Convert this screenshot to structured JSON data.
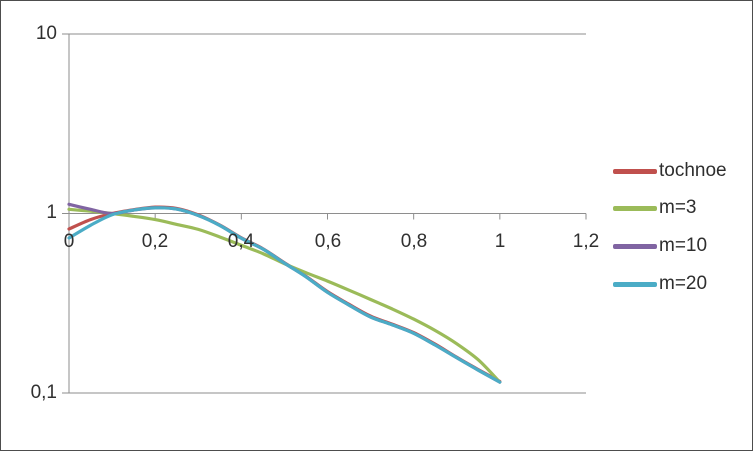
{
  "chart_data": {
    "type": "line",
    "title": "",
    "xlabel": "",
    "ylabel": "",
    "legend_position": "right",
    "grid": "horizontal-major-only",
    "colors": {
      "axis_line": "#8E8E8E",
      "tick_text": "#303030",
      "legend_text": "#2E2E2E",
      "frame_border": "#4D4D4D",
      "background": "#FFFFFF"
    },
    "x_axis": {
      "min": 0,
      "max": 1.2,
      "tick_values": [
        0,
        0.2,
        0.4,
        0.6,
        0.8,
        1,
        1.2
      ],
      "ticks": [
        "0",
        "0,2",
        "0,4",
        "0,6",
        "0,8",
        "1",
        "1,2"
      ],
      "decimal_separator": ","
    },
    "y_axis": {
      "scale": "log10",
      "min": 0.1,
      "max": 10,
      "tick_values": [
        10,
        1,
        0.1
      ],
      "ticks": [
        "10",
        "1",
        "0,1"
      ]
    },
    "x": [
      0,
      0.05,
      0.1,
      0.15,
      0.2,
      0.25,
      0.3,
      0.35,
      0.4,
      0.45,
      0.5,
      0.55,
      0.6,
      0.65,
      0.7,
      0.75,
      0.8,
      0.85,
      0.9,
      0.95,
      1
    ],
    "series": [
      {
        "name": "tochnoe",
        "color": "#C0504D",
        "values": [
          0.82,
          0.925,
          1.0,
          1.05,
          1.085,
          1.068,
          0.982,
          0.862,
          0.732,
          0.637,
          0.532,
          0.447,
          0.367,
          0.312,
          0.268,
          0.242,
          0.217,
          0.187,
          0.158,
          0.135,
          0.116
        ]
      },
      {
        "name": "m=3",
        "color": "#9BBB59",
        "values": [
          1.055,
          1.03,
          1.0,
          0.965,
          0.925,
          0.87,
          0.815,
          0.74,
          0.665,
          0.598,
          0.525,
          0.468,
          0.42,
          0.374,
          0.332,
          0.294,
          0.258,
          0.223,
          0.188,
          0.153,
          0.115
        ]
      },
      {
        "name": "m=10",
        "color": "#8064A2",
        "values": [
          1.125,
          1.055,
          1.0,
          1.045,
          1.075,
          1.058,
          0.975,
          0.858,
          0.728,
          0.634,
          0.529,
          0.444,
          0.364,
          0.309,
          0.265,
          0.24,
          0.215,
          0.185,
          0.157,
          0.134,
          0.115
        ]
      },
      {
        "name": "m=20",
        "color": "#4BACC6",
        "values": [
          0.73,
          0.86,
          0.985,
          1.045,
          1.075,
          1.058,
          0.975,
          0.858,
          0.728,
          0.634,
          0.529,
          0.444,
          0.364,
          0.309,
          0.265,
          0.24,
          0.215,
          0.185,
          0.157,
          0.134,
          0.115
        ]
      }
    ]
  }
}
